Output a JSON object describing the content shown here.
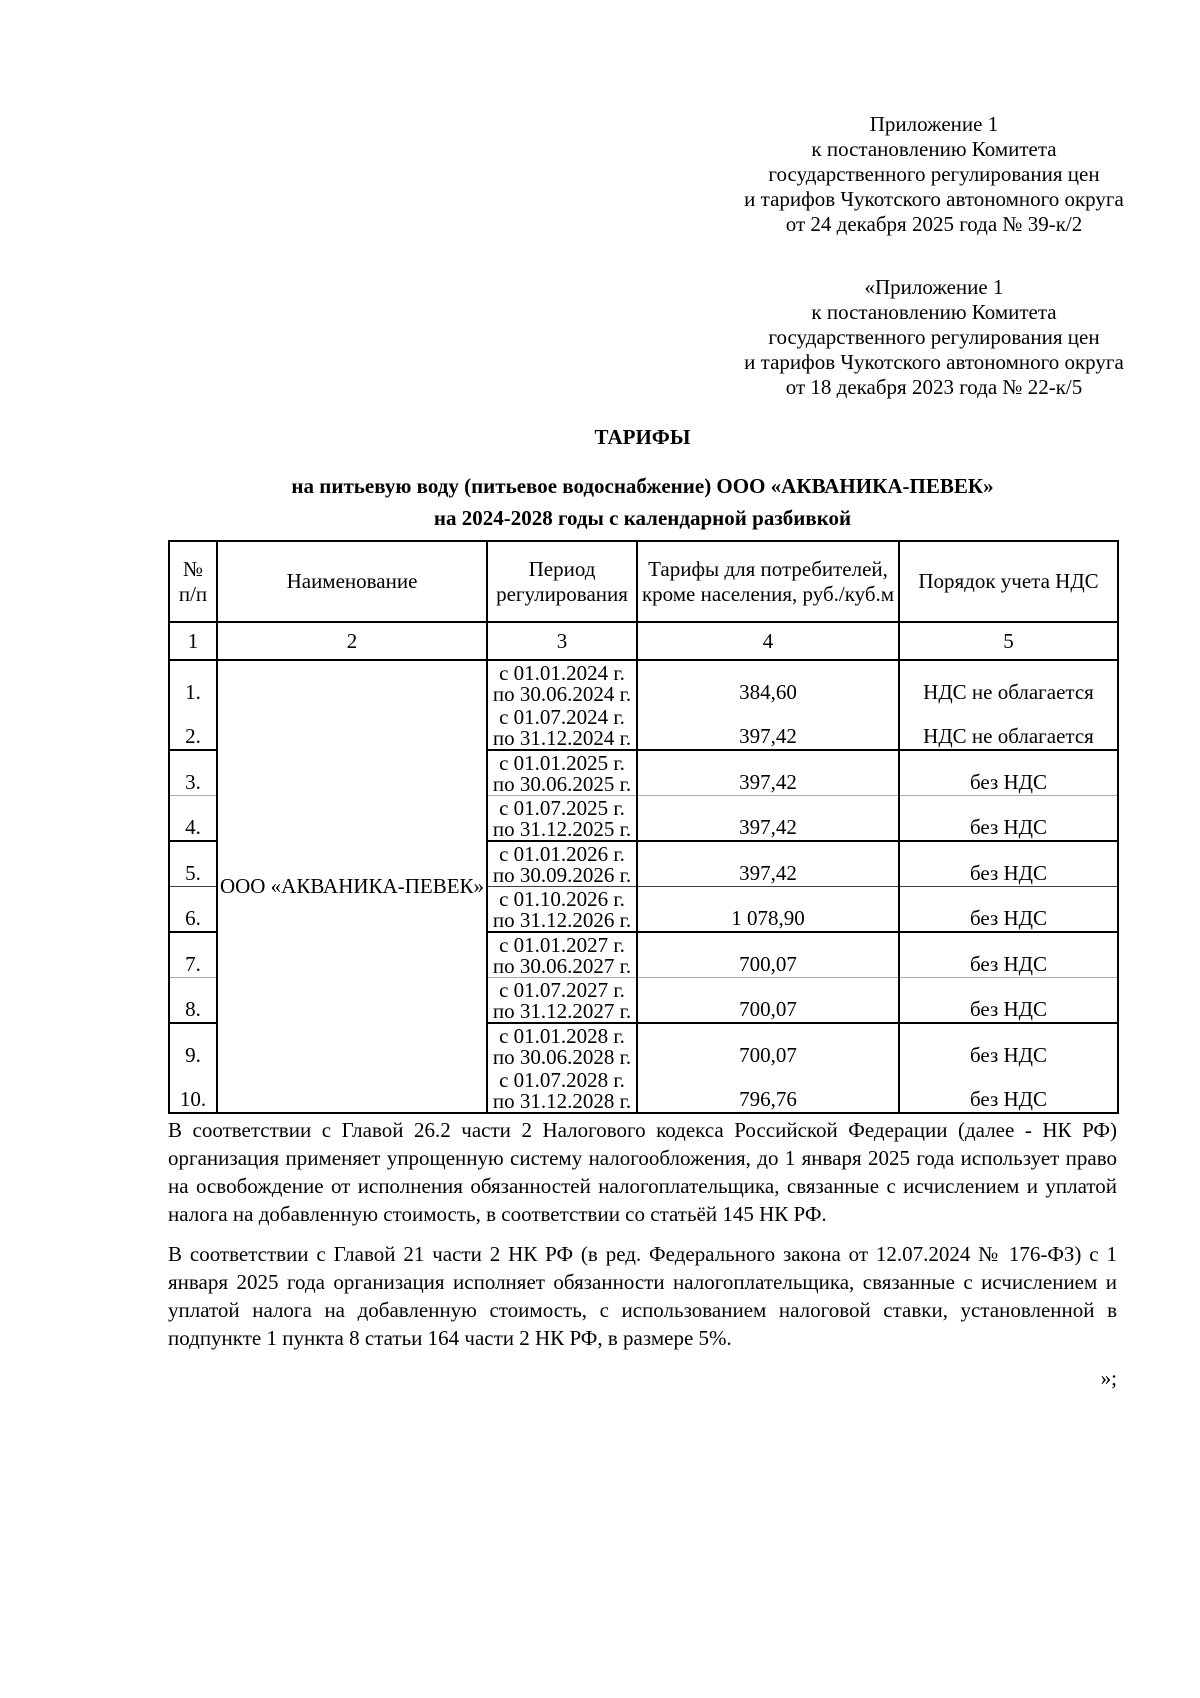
{
  "annex": {
    "blocks": [
      {
        "lines": [
          "Приложение 1",
          "к постановлению Комитета",
          "государственного регулирования цен",
          "и тарифов Чукотского автономного округа",
          "от 24 декабря 2025 года № 39-к/2"
        ]
      },
      {
        "lines": [
          "«Приложение 1",
          "к постановлению Комитета",
          "государственного регулирования цен",
          "и тарифов Чукотского автономного округа",
          "от 18 декабря 2023 года № 22-к/5"
        ]
      }
    ]
  },
  "title": {
    "heading": "ТАРИФЫ",
    "subtitle_line1": "на питьевую воду (питьевое водоснабжение) ООО «АКВАНИКА-ПЕВЕК»",
    "subtitle_line2": "на 2024-2028 годы с календарной разбивкой"
  },
  "table": {
    "header": {
      "col1_line1": "№",
      "col1_line2": "п/п",
      "col2": "Наименование",
      "col3_line1": "Период",
      "col3_line2": "регулирования",
      "col4_line1": "Тарифы для потребителей,",
      "col4_line2": "кроме населения, руб./куб.м",
      "col5": "Порядок учета НДС"
    },
    "column_numbers": [
      "1",
      "2",
      "3",
      "4",
      "5"
    ],
    "company_name": "ООО «АКВАНИКА-ПЕВЕК»",
    "rows": [
      {
        "num": "1.",
        "period_from": "с 01.01.2024 г.",
        "period_to": "по 30.06.2024 г.",
        "tariff": "384,60",
        "vat": "НДС не облагается"
      },
      {
        "num": "2.",
        "period_from": "с 01.07.2024 г.",
        "period_to": "по 31.12.2024 г.",
        "tariff": "397,42",
        "vat": "НДС не облагается"
      },
      {
        "num": "3.",
        "period_from": "с 01.01.2025 г.",
        "period_to": "по 30.06.2025 г.",
        "tariff": "397,42",
        "vat": "без НДС"
      },
      {
        "num": "4.",
        "period_from": "с 01.07.2025 г.",
        "period_to": "по 31.12.2025 г.",
        "tariff": "397,42",
        "vat": "без НДС"
      },
      {
        "num": "5.",
        "period_from": "с 01.01.2026 г.",
        "period_to": "по 30.09.2026 г.",
        "tariff": "397,42",
        "vat": "без НДС"
      },
      {
        "num": "6.",
        "period_from": "с 01.10.2026 г.",
        "period_to": "по 31.12.2026 г.",
        "tariff": "1 078,90",
        "vat": "без НДС"
      },
      {
        "num": "7.",
        "period_from": "с 01.01.2027 г.",
        "period_to": "по 30.06.2027 г.",
        "tariff": "700,07",
        "vat": "без НДС"
      },
      {
        "num": "8.",
        "period_from": "с 01.07.2027 г.",
        "period_to": "по 31.12.2027 г.",
        "tariff": "700,07",
        "vat": "без НДС"
      },
      {
        "num": "9.",
        "period_from": "с 01.01.2028 г.",
        "period_to": "по 30.06.2028 г.",
        "tariff": "700,07",
        "vat": "без НДС"
      },
      {
        "num": "10.",
        "period_from": "с 01.07.2028 г.",
        "period_to": "по 31.12.2028 г.",
        "tariff": "796,76",
        "vat": "без НДС"
      }
    ]
  },
  "notes": {
    "paragraph1": "В соответствии с Главой 26.2 части 2 Налогового кодекса Российской Федерации (далее - НК РФ) организация применяет упрощенную систему налогообложения, до 1 января 2025 года использует право на освобождение от исполнения обязанностей налогоплательщика, связанные с исчислением и уплатой налога на добавленную стоимость, в соответствии со статьёй 145 НК РФ.",
    "paragraph2": "В соответствии с Главой 21 части 2 НК РФ (в ред. Федерального закона от 12.07.2024 № 176-ФЗ) с 1 января 2025 года организация исполняет обязанности налогоплательщика, связанные с исчислением и уплатой налога на добавленную стоимость, с использованием налоговой ставки, установленной в подпункте 1 пункта 8 статьи 164 части 2 НК РФ, в размере 5%.",
    "closing_mark": "»;"
  }
}
